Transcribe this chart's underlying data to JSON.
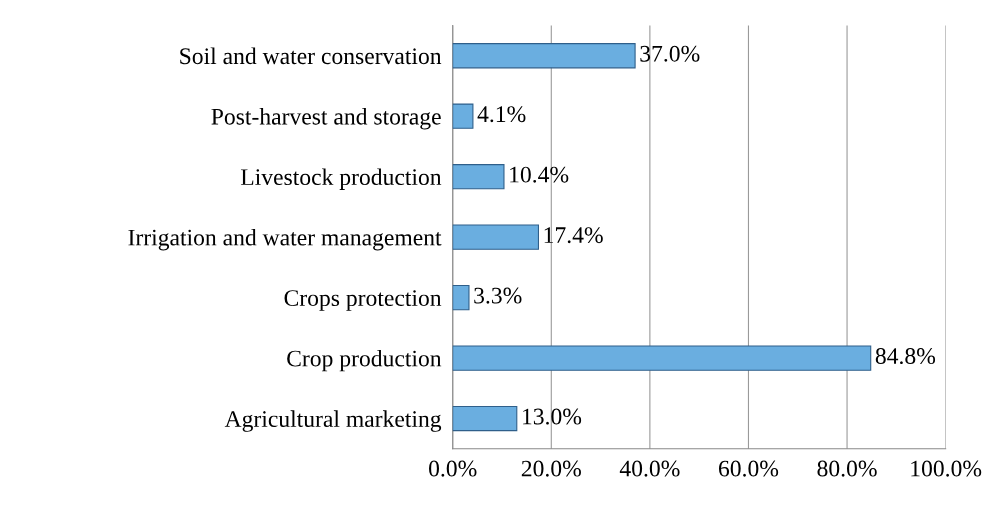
{
  "chart_data": {
    "type": "bar",
    "orientation": "horizontal",
    "categories": [
      "Soil and water conservation",
      "Post-harvest and storage",
      "Livestock production",
      "Irrigation and water management",
      "Crops protection",
      "Crop production",
      "Agricultural marketing"
    ],
    "values": [
      37.0,
      4.1,
      10.4,
      17.4,
      3.3,
      84.8,
      13.0
    ],
    "value_labels": [
      "37.0%",
      "4.1%",
      "10.4%",
      "17.4%",
      "3.3%",
      "84.8%",
      "13.0%"
    ],
    "color": "#6aaee0",
    "xlim": [
      0,
      100
    ],
    "xticks": [
      {
        "value": 0,
        "label": "0.0%"
      },
      {
        "value": 20,
        "label": "20.0%"
      },
      {
        "value": 40,
        "label": "40.0%"
      },
      {
        "value": 60,
        "label": "60.0%"
      },
      {
        "value": 80,
        "label": "80.0%"
      },
      {
        "value": 100,
        "label": "100.0%"
      }
    ],
    "grid": "x"
  }
}
